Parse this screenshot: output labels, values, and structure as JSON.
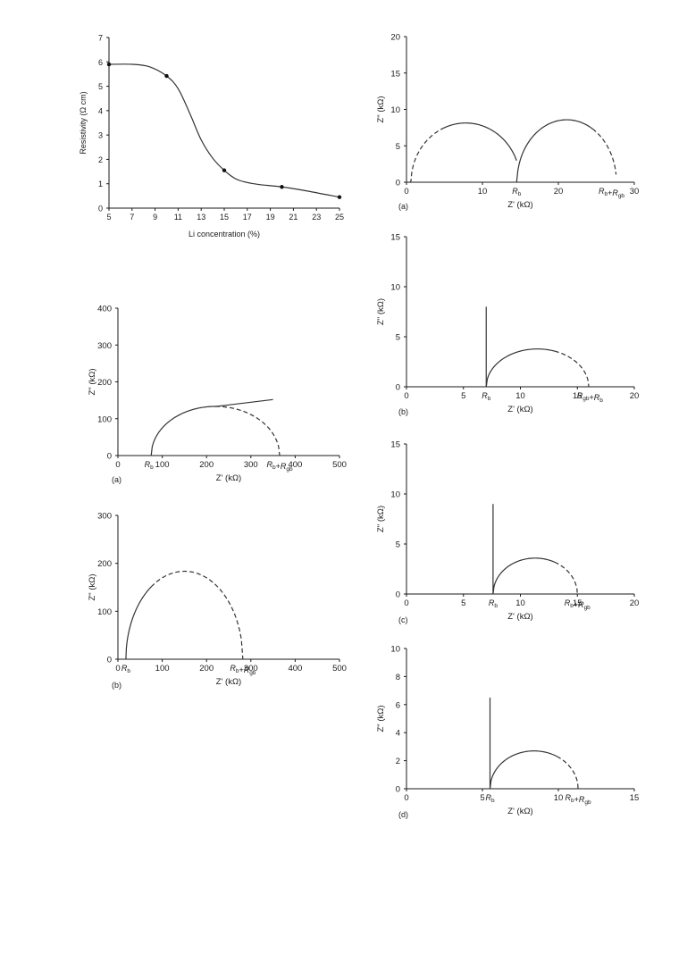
{
  "chart_data": [
    {
      "id": "resistivity",
      "type": "line",
      "xlabel": "Li concentration (%)",
      "ylabel": "Resistivity (Ω cm)",
      "xlim": [
        5,
        25
      ],
      "ylim": [
        0,
        7
      ],
      "xticks": [
        5,
        7,
        9,
        11,
        13,
        15,
        17,
        19,
        21,
        23,
        25
      ],
      "yticks": [
        0,
        1,
        2,
        3,
        4,
        5,
        6,
        7
      ],
      "series": [
        {
          "markers": true,
          "points": [
            [
              5,
              5.9
            ],
            [
              10,
              5.42
            ],
            [
              15,
              1.55
            ],
            [
              20,
              0.87
            ],
            [
              25,
              0.45
            ]
          ]
        }
      ],
      "curve": [
        [
          5,
          5.9
        ],
        [
          7,
          5.9
        ],
        [
          8.5,
          5.8
        ],
        [
          10,
          5.42
        ],
        [
          11,
          4.9
        ],
        [
          12,
          3.9
        ],
        [
          13,
          2.8
        ],
        [
          14,
          2.05
        ],
        [
          15,
          1.55
        ],
        [
          16,
          1.2
        ],
        [
          17,
          1.05
        ],
        [
          18,
          0.97
        ],
        [
          20,
          0.87
        ],
        [
          22,
          0.72
        ],
        [
          25,
          0.45
        ]
      ]
    },
    {
      "id": "left-a",
      "type": "line",
      "panel": "(a)",
      "xlabel": "Z' (kΩ)",
      "ylabel": "Z\" (kΩ)",
      "xlim": [
        0,
        500
      ],
      "ylim": [
        0,
        400
      ],
      "xticks": [
        0,
        100,
        200,
        300,
        400,
        500
      ],
      "yticks": [
        0,
        100,
        200,
        300,
        400
      ],
      "annotations": [
        {
          "label": "Rb",
          "x": 70
        },
        {
          "label": "Rb+Rgb",
          "x": 365
        }
      ],
      "solid_arc": {
        "center": 220,
        "radius": 145,
        "y_scale": 0.92,
        "from_x": 75,
        "to_x": 220
      },
      "dashed_arc": {
        "center": 220,
        "radius": 145,
        "y_scale": 0.92,
        "from_x": 220,
        "to_x": 365
      },
      "solid_line": [
        [
          220,
          133
        ],
        [
          350,
          152
        ]
      ]
    },
    {
      "id": "left-b",
      "type": "line",
      "panel": "(b)",
      "xlabel": "Z' (kΩ)",
      "ylabel": "Z\" (kΩ)",
      "xlim": [
        0,
        500
      ],
      "ylim": [
        0,
        300
      ],
      "xticks": [
        0,
        100,
        200,
        300,
        400,
        500
      ],
      "yticks": [
        0,
        100,
        200,
        300
      ],
      "annotations": [
        {
          "label": "Rb",
          "x": 18
        },
        {
          "label": "Rb+Rgb",
          "x": 282
        }
      ],
      "solid_arc": {
        "center": 150,
        "radius": 132,
        "y_scale": 1.39,
        "from_x": 18,
        "to_x": 75
      },
      "dashed_arc": {
        "center": 150,
        "radius": 132,
        "y_scale": 1.39,
        "from_x": 75,
        "to_x": 282
      }
    },
    {
      "id": "right-a",
      "type": "line",
      "panel": "(a)",
      "xlabel": "Z' (kΩ)",
      "ylabel": "Z\" (kΩ)",
      "xlim": [
        0,
        30
      ],
      "ylim": [
        0,
        20
      ],
      "xticks": [
        0,
        10,
        20,
        30
      ],
      "xtick_labels": [
        "0",
        "10",
        "20",
        "30"
      ],
      "yticks": [
        0,
        5,
        10,
        15,
        20
      ],
      "annotations": [
        {
          "label": "Rb",
          "x": 14.5
        },
        {
          "label": "Rb+Rgb",
          "x": 27
        }
      ],
      "arcs": [
        {
          "center": 7.8,
          "radius": 7.2,
          "y_scale": 1.13,
          "dashed_from": 0.4,
          "dashed_to": 4.5,
          "solid_from": 4.5,
          "solid_to": 14.5
        },
        {
          "center": 21.1,
          "radius": 6.55,
          "y_scale": 1.31,
          "solid_from": 14.5,
          "solid_to": 24.5,
          "dashed_from": 24.5,
          "dashed_to": 27.6
        }
      ]
    },
    {
      "id": "right-b",
      "type": "line",
      "panel": "(b)",
      "xlabel": "Z' (kΩ)",
      "ylabel": "Z\" (kΩ)",
      "xlim": [
        0,
        20
      ],
      "ylim": [
        0,
        15
      ],
      "xticks": [
        0,
        5,
        10,
        15,
        20
      ],
      "yticks": [
        0,
        5,
        10,
        15
      ],
      "annotations": [
        {
          "label": "Rb",
          "x": 7
        },
        {
          "label": "Rgb+Rb",
          "x": 16.1
        }
      ],
      "vertical_line": {
        "x": 7,
        "top": 8
      },
      "solid_arc": {
        "center": 11.5,
        "radius": 4.5,
        "y_scale": 0.84,
        "from_x": 7,
        "to_x": 13
      },
      "dashed_arc": {
        "center": 11.5,
        "radius": 4.5,
        "y_scale": 0.84,
        "from_x": 13,
        "to_x": 16
      }
    },
    {
      "id": "right-c",
      "type": "line",
      "panel": "(c)",
      "xlabel": "Z' (kΩ)",
      "ylabel": "Z\" (kΩ)",
      "xlim": [
        0,
        20
      ],
      "ylim": [
        0,
        15
      ],
      "xticks": [
        0,
        5,
        10,
        15,
        20
      ],
      "yticks": [
        0,
        5,
        10,
        15
      ],
      "annotations": [
        {
          "label": "Rb",
          "x": 7.6
        },
        {
          "label": "Rb+Rgb",
          "x": 15
        }
      ],
      "vertical_line": {
        "x": 7.6,
        "top": 9
      },
      "solid_arc": {
        "center": 11.3,
        "radius": 3.7,
        "y_scale": 0.97,
        "from_x": 7.6,
        "to_x": 13
      },
      "dashed_arc": {
        "center": 11.3,
        "radius": 3.7,
        "y_scale": 0.97,
        "from_x": 13,
        "to_x": 15
      }
    },
    {
      "id": "right-d",
      "type": "line",
      "panel": "(d)",
      "xlabel": "Z' (kΩ)",
      "ylabel": "Z\" (kΩ)",
      "xlim": [
        0,
        15
      ],
      "ylim": [
        0,
        10
      ],
      "xticks": [
        0,
        5,
        10,
        15
      ],
      "yticks": [
        0,
        2,
        4,
        6,
        8,
        10
      ],
      "annotations": [
        {
          "label": "Rb",
          "x": 5.5
        },
        {
          "label": "Rb+Rgb",
          "x": 11.3
        }
      ],
      "vertical_line": {
        "x": 5.5,
        "top": 6.5
      },
      "solid_arc": {
        "center": 8.4,
        "radius": 2.9,
        "y_scale": 0.93,
        "from_x": 5.5,
        "to_x": 9.9
      },
      "dashed_arc": {
        "center": 8.4,
        "radius": 2.9,
        "y_scale": 0.93,
        "from_x": 9.9,
        "to_x": 11.3
      }
    }
  ]
}
